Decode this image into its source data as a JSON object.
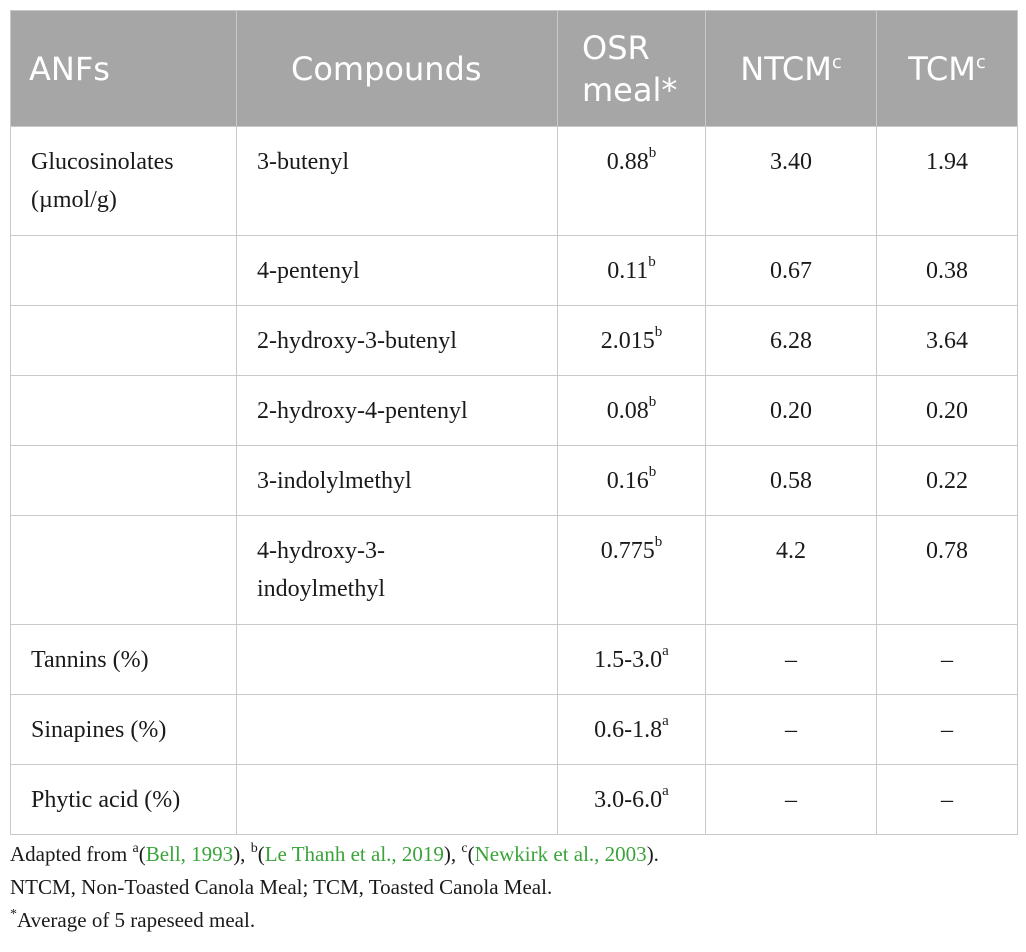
{
  "table": {
    "headers": [
      {
        "text": "ANFs",
        "sup": ""
      },
      {
        "text": "Compounds",
        "sup": ""
      },
      {
        "text": "OSR meal*",
        "sup": ""
      },
      {
        "text": "NTCM",
        "sup": "c"
      },
      {
        "text": "TCM",
        "sup": "c"
      }
    ],
    "rows": [
      {
        "anf": "Glucosinolates (µmol/g)",
        "compound": "3-butenyl",
        "osr": "0.88",
        "osr_sup": "b",
        "ntcm": "3.40",
        "tcm": "1.94"
      },
      {
        "anf": "",
        "compound": "4-pentenyl",
        "osr": "0.11",
        "osr_sup": "b",
        "ntcm": "0.67",
        "tcm": "0.38"
      },
      {
        "anf": "",
        "compound": "2-hydroxy-3-butenyl",
        "osr": "2.015",
        "osr_sup": "b",
        "ntcm": "6.28",
        "tcm": "3.64"
      },
      {
        "anf": "",
        "compound": "2-hydroxy-4-pentenyl",
        "osr": "0.08",
        "osr_sup": "b",
        "ntcm": "0.20",
        "tcm": "0.20"
      },
      {
        "anf": "",
        "compound": "3-indolylmethyl",
        "osr": "0.16",
        "osr_sup": "b",
        "ntcm": "0.58",
        "tcm": "0.22"
      },
      {
        "anf": "",
        "compound": "4-hydroxy-3-indoylmethyl",
        "osr": "0.775",
        "osr_sup": "b",
        "ntcm": "4.2",
        "tcm": "0.78"
      },
      {
        "anf": "Tannins (%)",
        "compound": "",
        "osr": "1.5-3.0",
        "osr_sup": "a",
        "ntcm": "–",
        "tcm": "–"
      },
      {
        "anf": "Sinapines (%)",
        "compound": "",
        "osr": "0.6-1.8",
        "osr_sup": "a",
        "ntcm": "–",
        "tcm": "–"
      },
      {
        "anf": "Phytic acid (%)",
        "compound": "",
        "osr": "3.0-6.0",
        "osr_sup": "a",
        "ntcm": "–",
        "tcm": "–"
      }
    ]
  },
  "footnotes": {
    "adapted_prefix": "Adapted from ",
    "sup_a": "a",
    "cite_a": "Bell, 1993",
    "sup_b": "b",
    "cite_b": "Le Thanh et al., 2019",
    "sup_c": "c",
    "cite_c": "Newkirk et al., 2003",
    "abbrev": "NTCM, Non-Toasted Canola Meal; TCM, Toasted Canola Meal.",
    "star_mark": "*",
    "star_text": "Average of 5 rapeseed meal."
  },
  "colors": {
    "header_bg": "#a6a6a6",
    "header_text": "#ffffff",
    "border": "#c9c9c9",
    "citation": "#3aa33a"
  }
}
